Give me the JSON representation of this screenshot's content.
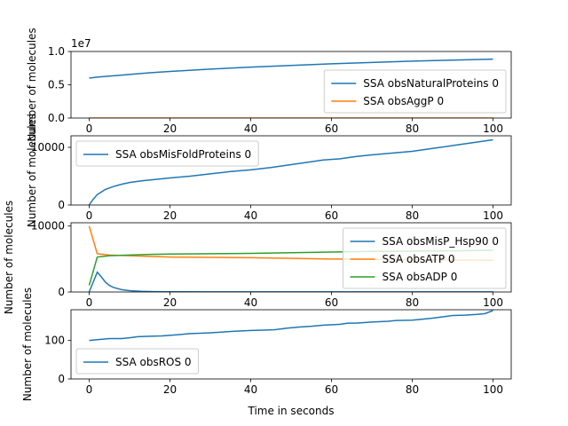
{
  "figure": {
    "xlabel": "Time in seconds"
  },
  "colors": {
    "blue": "#1f77b4",
    "orange": "#ff7f0e",
    "green": "#2ca02c",
    "axis": "#000000",
    "legend_border": "#cccccc"
  },
  "chart_data": [
    {
      "type": "line",
      "ylabel": "Number of molecules",
      "xlim": [
        -4.5,
        104.5
      ],
      "ylim": [
        0,
        1.0
      ],
      "offset_label": "1e7",
      "xticks": [
        0,
        20,
        40,
        60,
        80,
        100
      ],
      "xtick_labels": [
        "0",
        "20",
        "40",
        "60",
        "80",
        "100"
      ],
      "yticks": [
        0,
        0.5,
        1.0
      ],
      "ytick_labels": [
        "0.0",
        "0.5",
        "1.0"
      ],
      "legend_position": "lower-right",
      "series": [
        {
          "name": "SSA obsNaturalProteins 0",
          "color": "blue",
          "x": [
            0,
            2,
            5,
            10,
            15,
            20,
            30,
            40,
            50,
            60,
            70,
            80,
            90,
            100
          ],
          "y": [
            0.6,
            0.615,
            0.63,
            0.655,
            0.68,
            0.7,
            0.735,
            0.765,
            0.79,
            0.815,
            0.835,
            0.855,
            0.87,
            0.885
          ]
        },
        {
          "name": "SSA obsAggP 0",
          "color": "orange",
          "x": [
            0,
            100
          ],
          "y": [
            0,
            0
          ]
        }
      ]
    },
    {
      "type": "line",
      "ylabel": "Number of molecules",
      "xlim": [
        -4.5,
        104.5
      ],
      "ylim": [
        0,
        12000
      ],
      "xticks": [
        0,
        20,
        40,
        60,
        80,
        100
      ],
      "xtick_labels": [
        "0",
        "20",
        "40",
        "60",
        "80",
        "100"
      ],
      "yticks": [
        0,
        10000
      ],
      "ytick_labels": [
        "0",
        "10000"
      ],
      "legend_position": "upper-left",
      "series": [
        {
          "name": "SSA obsMisFoldProteins 0",
          "color": "blue",
          "x": [
            0,
            1,
            2,
            4,
            6,
            8,
            10,
            13,
            16,
            20,
            25,
            30,
            35,
            40,
            45,
            50,
            55,
            58,
            62,
            66,
            70,
            75,
            80,
            85,
            90,
            95,
            100
          ],
          "y": [
            0,
            1000,
            1800,
            2700,
            3200,
            3600,
            3900,
            4200,
            4400,
            4700,
            5000,
            5400,
            5800,
            6100,
            6500,
            7000,
            7500,
            7800,
            8000,
            8400,
            8700,
            9000,
            9300,
            9800,
            10300,
            10800,
            11300
          ]
        }
      ]
    },
    {
      "type": "line",
      "ylabel": "Number of molecules",
      "xlim": [
        -4.5,
        104.5
      ],
      "ylim": [
        0,
        10500
      ],
      "xticks": [
        0,
        20,
        40,
        60,
        80,
        100
      ],
      "xtick_labels": [
        "0",
        "20",
        "40",
        "60",
        "80",
        "100"
      ],
      "yticks": [
        0,
        10000
      ],
      "ytick_labels": [
        "0",
        "10000"
      ],
      "legend_position": "upper-right",
      "series": [
        {
          "name": "SSA obsMisP_Hsp90 0",
          "color": "blue",
          "x": [
            0,
            1,
            2,
            3,
            4,
            5,
            6,
            8,
            10,
            13,
            16,
            20,
            30,
            40,
            50,
            60,
            70,
            80,
            90,
            100
          ],
          "y": [
            0,
            1500,
            3000,
            2300,
            1500,
            1000,
            700,
            350,
            200,
            100,
            50,
            30,
            10,
            10,
            10,
            10,
            10,
            10,
            10,
            10
          ]
        },
        {
          "name": "SSA obsATP 0",
          "color": "orange",
          "x": [
            0,
            2,
            5,
            10,
            15,
            20,
            30,
            40,
            50,
            60,
            70,
            80,
            90,
            100
          ],
          "y": [
            10000,
            5800,
            5600,
            5500,
            5400,
            5300,
            5250,
            5200,
            5100,
            5000,
            4950,
            4900,
            4850,
            4800
          ]
        },
        {
          "name": "SSA obsADP 0",
          "color": "green",
          "x": [
            0,
            2,
            5,
            10,
            15,
            20,
            30,
            40,
            50,
            60,
            70,
            80,
            90,
            100
          ],
          "y": [
            1000,
            5300,
            5500,
            5600,
            5700,
            5750,
            5800,
            5850,
            5950,
            6050,
            6150,
            6200,
            6250,
            6350
          ]
        }
      ]
    },
    {
      "type": "line",
      "ylabel": "Number of molecules",
      "xlabel": "Time in seconds",
      "xlim": [
        -4.5,
        104.5
      ],
      "ylim": [
        0,
        180
      ],
      "xticks": [
        0,
        20,
        40,
        60,
        80,
        100
      ],
      "xtick_labels": [
        "0",
        "20",
        "40",
        "60",
        "80",
        "100"
      ],
      "yticks": [
        0,
        100
      ],
      "ytick_labels": [
        "0",
        "100"
      ],
      "legend_position": "lower-left",
      "series": [
        {
          "name": "SSA obsROS 0",
          "color": "blue",
          "x": [
            0,
            2,
            5,
            8,
            10,
            12,
            15,
            18,
            22,
            25,
            28,
            30,
            33,
            36,
            40,
            43,
            46,
            49,
            52,
            55,
            58,
            62,
            64,
            66,
            70,
            74,
            76,
            80,
            82,
            85,
            88,
            90,
            93,
            96,
            98,
            100
          ],
          "y": [
            100,
            102,
            105,
            105,
            107,
            110,
            111,
            112,
            115,
            118,
            119,
            120,
            122,
            124,
            126,
            127,
            128,
            132,
            135,
            137,
            140,
            142,
            145,
            145,
            148,
            150,
            152,
            153,
            155,
            158,
            162,
            165,
            166,
            168,
            170,
            178
          ]
        }
      ]
    }
  ]
}
